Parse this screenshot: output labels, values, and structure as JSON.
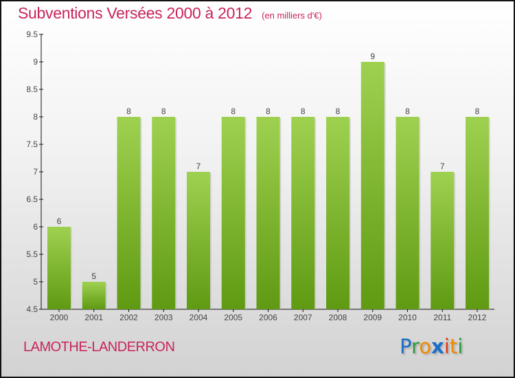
{
  "chart_data": {
    "type": "bar",
    "title": "Subventions Versées 2000 à 2012",
    "subtitle": "(en milliers d'€)",
    "xlabel": "",
    "ylabel": "",
    "categories": [
      "2000",
      "2001",
      "2002",
      "2003",
      "2004",
      "2005",
      "2006",
      "2007",
      "2008",
      "2009",
      "2010",
      "2011",
      "2012"
    ],
    "values": [
      6,
      5,
      8,
      8,
      7,
      8,
      8,
      8,
      8,
      9,
      8,
      7,
      8
    ],
    "data_labels": [
      "6",
      "5",
      "8",
      "8",
      "7",
      "8",
      "8",
      "8",
      "8",
      "9",
      "8",
      "7",
      "8"
    ],
    "ylim": [
      4.5,
      9.5
    ],
    "yticks": [
      "4.5",
      "5",
      "5.5",
      "6",
      "6.5",
      "7",
      "7.5",
      "8",
      "8.5",
      "9",
      "9.5"
    ],
    "grid": false,
    "colors": {
      "bar_top": "#9fd150",
      "bar_bottom": "#5f9a12",
      "title": "#c8245a"
    }
  },
  "footer": {
    "city": "LAMOTHE-LANDERRON",
    "logo_letters": [
      "P",
      "r",
      "o",
      "x",
      "i",
      "t",
      "i"
    ],
    "logo_colors": [
      "#1a6fc9",
      "#2e9a3c",
      "#f28a00",
      "#1a6fc9",
      "#e23a1a",
      "#f28a00",
      "#2e9a3c"
    ]
  }
}
